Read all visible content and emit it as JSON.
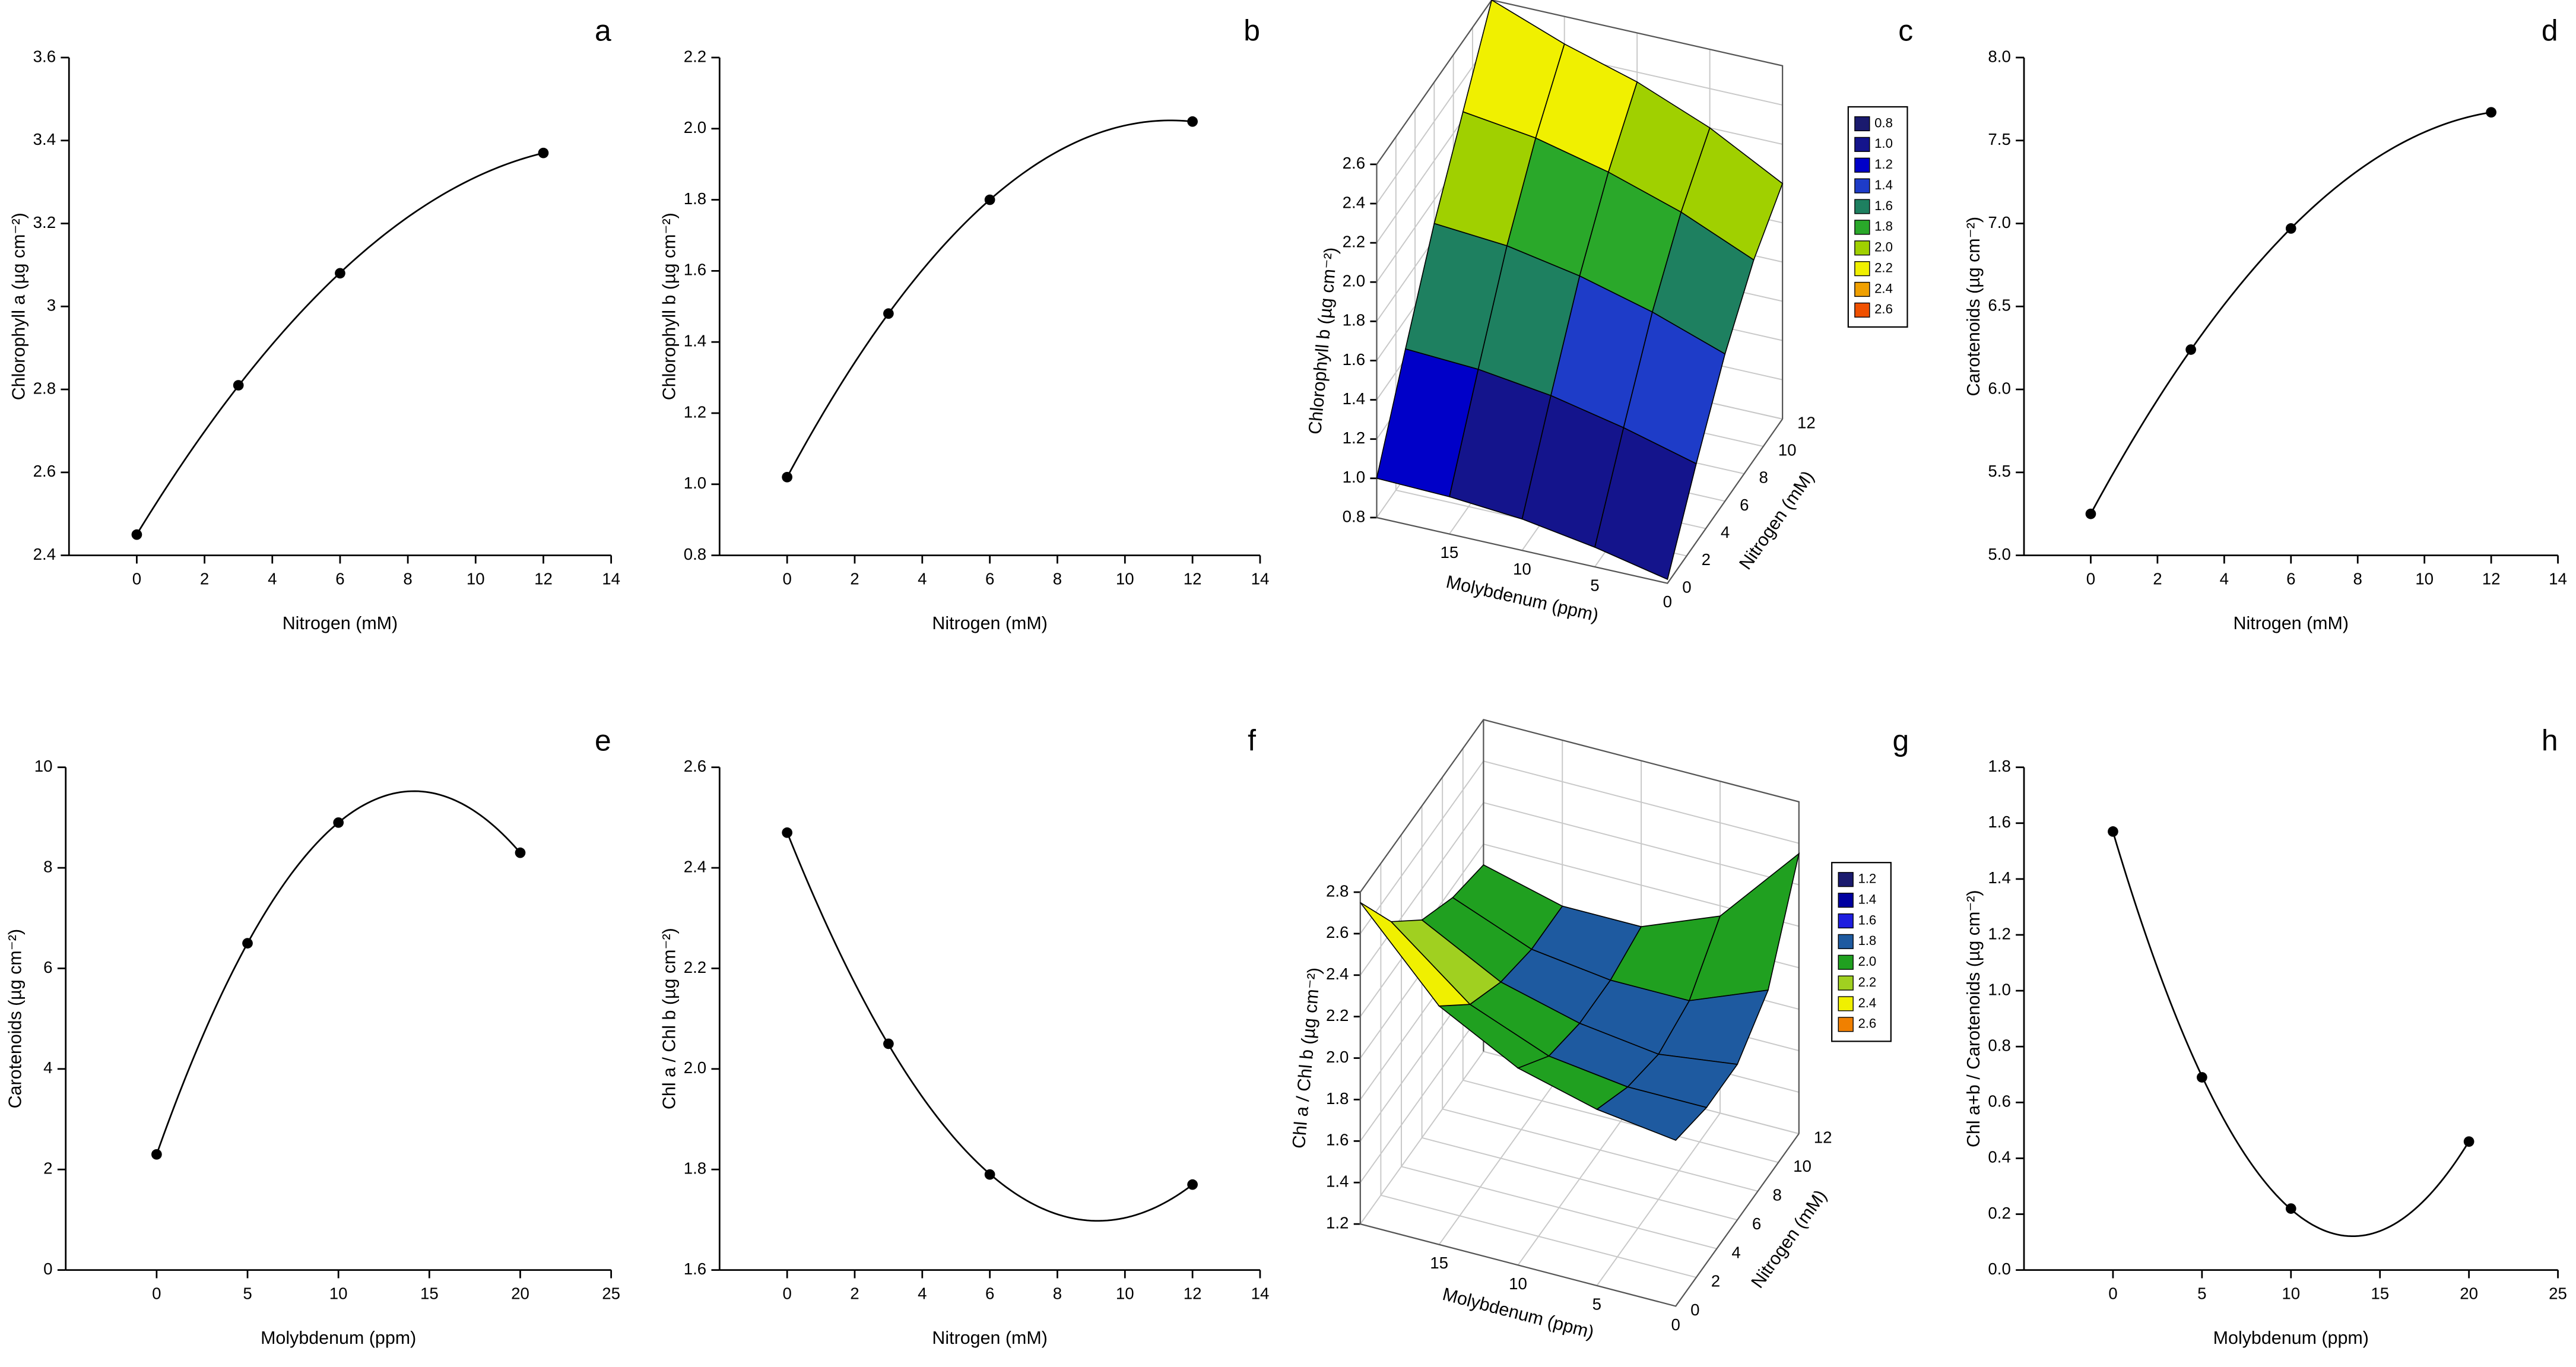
{
  "chart_data": [
    {
      "type": "line",
      "label": "a",
      "x_label": "Nitrogen (mM)",
      "y_label": "Chlorophyll a (µg cm⁻²)",
      "x": [
        0,
        3,
        6,
        12
      ],
      "values": [
        2.45,
        2.81,
        3.08,
        3.37
      ],
      "color": "#000000",
      "xlim": [
        -2,
        14
      ],
      "xticks": [
        0,
        2,
        4,
        6,
        8,
        10,
        12,
        14
      ],
      "ylim": [
        2.4,
        3.6
      ],
      "yticks": [
        2.4,
        2.6,
        2.8,
        3.0,
        3.2,
        3.4,
        3.6
      ]
    },
    {
      "type": "line",
      "label": "b",
      "x_label": "Nitrogen (mM)",
      "y_label": "Chlorophyll b (µg cm⁻²)",
      "x": [
        0,
        3,
        6,
        12
      ],
      "values": [
        1.02,
        1.48,
        1.8,
        2.02
      ],
      "color": "#000000",
      "xlim": [
        -2,
        14
      ],
      "xticks": [
        0,
        2,
        4,
        6,
        8,
        10,
        12,
        14
      ],
      "ylim": [
        0.8,
        2.2
      ],
      "yticks": [
        0.8,
        {
          "value": 1,
          "label": "1.0"
        },
        1.2,
        1.4,
        1.6,
        1.8,
        {
          "value": 2,
          "label": "2.0"
        },
        2.2
      ]
    },
    {
      "type": "surface",
      "label": "c",
      "x_label": "Molybdenum (ppm)",
      "y_label": "Nitrogen (mM)",
      "z_label": "Chlorophyll b (µg cm⁻²)",
      "x": [
        0,
        5,
        10,
        15,
        20
      ],
      "y": [
        0,
        3,
        6,
        9,
        12
      ],
      "z": [
        [
          0.82,
          0.9,
          0.96,
          0.99,
          1.0
        ],
        [
          1.2,
          1.3,
          1.38,
          1.43,
          1.45
        ],
        [
          1.55,
          1.68,
          1.78,
          1.85,
          1.88
        ],
        [
          1.82,
          1.98,
          2.1,
          2.19,
          2.24
        ],
        [
          2.0,
          2.2,
          2.35,
          2.46,
          2.6
        ]
      ],
      "xlim": [
        0,
        20
      ],
      "xticks": [
        0,
        5,
        10,
        15
      ],
      "ylim": [
        0,
        12
      ],
      "yticks": [
        0,
        2,
        4,
        6,
        8,
        10,
        12
      ],
      "zlim": [
        0.8,
        2.6
      ],
      "zticks": [
        0.8,
        {
          "value": 1,
          "label": "1.0"
        },
        1.2,
        1.4,
        1.6,
        1.8,
        {
          "value": 2,
          "label": "2.0"
        },
        2.2,
        2.4,
        2.6
      ],
      "levels": [
        0.8,
        {
          "value": 1,
          "label": "1.0"
        },
        1.2,
        1.4,
        1.6,
        1.8,
        {
          "value": 2,
          "label": "2.0"
        },
        2.2,
        2.4,
        2.6
      ],
      "level_colors": [
        "#1a1a6e",
        "#14148c",
        "#0000c8",
        "#1e3cc8",
        "#1e8060",
        "#2aa82a",
        "#a0d000",
        "#f0f000",
        "#f0a000",
        "#f05000"
      ]
    },
    {
      "type": "line",
      "label": "d",
      "x_label": "Nitrogen (mM)",
      "y_label": "Carotenoids (µg cm⁻²)",
      "x": [
        0,
        3,
        6,
        12
      ],
      "values": [
        5.25,
        6.24,
        6.97,
        7.67
      ],
      "color": "#000000",
      "xlim": [
        -2,
        14
      ],
      "xticks": [
        0,
        2,
        4,
        6,
        8,
        10,
        12,
        14
      ],
      "ylim": [
        5,
        8
      ],
      "yticks": [
        {
          "value": 5,
          "label": "5.0"
        },
        5.5,
        {
          "value": 6,
          "label": "6.0"
        },
        6.5,
        {
          "value": 7,
          "label": "7.0"
        },
        7.5,
        {
          "value": 8,
          "label": "8.0"
        }
      ]
    },
    {
      "type": "line",
      "label": "e",
      "x_label": "Molybdenum (ppm)",
      "y_label": "Carotenoids (µg cm⁻²)",
      "x": [
        0,
        5,
        10,
        20
      ],
      "values": [
        2.3,
        6.5,
        8.9,
        8.3
      ],
      "color": "#000000",
      "xlim": [
        -5,
        25
      ],
      "xticks": [
        0,
        5,
        10,
        15,
        20,
        25
      ],
      "ylim": [
        0,
        10
      ],
      "yticks": [
        0,
        2,
        4,
        6,
        8,
        10
      ]
    },
    {
      "type": "line",
      "label": "f",
      "x_label": "Nitrogen (mM)",
      "y_label": "Chl a / Chl b (µg cm⁻²)",
      "x": [
        0,
        3,
        6,
        12
      ],
      "values": [
        2.47,
        2.05,
        1.79,
        1.77
      ],
      "color": "#000000",
      "xlim": [
        -2,
        14
      ],
      "xticks": [
        0,
        2,
        4,
        6,
        8,
        10,
        12,
        14
      ],
      "ylim": [
        1.6,
        2.6
      ],
      "yticks": [
        1.6,
        1.8,
        {
          "value": 2,
          "label": "2.0"
        },
        2.2,
        2.4,
        2.6
      ]
    },
    {
      "type": "surface",
      "label": "g",
      "x_label": "Molybdenum (ppm)",
      "y_label": "Nitrogen (mM)",
      "z_label": "Chl a / Chl b (µg cm⁻²)",
      "x": [
        0,
        5,
        10,
        15,
        20
      ],
      "y": [
        0,
        3,
        6,
        9,
        12
      ],
      "z": [
        [
          2.0,
          2.05,
          2.15,
          2.35,
          2.75
        ],
        [
          1.95,
          1.95,
          2.0,
          2.15,
          2.45
        ],
        [
          1.95,
          1.9,
          1.95,
          2.05,
          2.25
        ],
        [
          2.1,
          1.95,
          1.95,
          2.0,
          2.15
        ],
        [
          2.55,
          2.15,
          2.0,
          2.0,
          2.1
        ]
      ],
      "xlim": [
        0,
        20
      ],
      "xticks": [
        0,
        5,
        10,
        15
      ],
      "ylim": [
        0,
        12
      ],
      "yticks": [
        0,
        2,
        4,
        6,
        8,
        10,
        12
      ],
      "zlim": [
        1.2,
        2.8
      ],
      "zticks": [
        1.2,
        1.4,
        1.6,
        1.8,
        {
          "value": 2,
          "label": "2.0"
        },
        2.2,
        2.4,
        2.6,
        2.8
      ],
      "levels": [
        1.2,
        1.4,
        1.6,
        1.8,
        {
          "value": 2,
          "label": "2.0"
        },
        2.2,
        2.4,
        2.6
      ],
      "level_colors": [
        "#1a1a6e",
        "#0000a0",
        "#1e1ee0",
        "#1e5aa0",
        "#20a020",
        "#a0d020",
        "#f0f000",
        "#f08000"
      ]
    },
    {
      "type": "line",
      "label": "h",
      "x_label": "Molybdenum (ppm)",
      "y_label": "Chl a+b / Carotenoids (µg cm⁻²)",
      "x": [
        0,
        5,
        10,
        20
      ],
      "values": [
        1.57,
        0.69,
        0.22,
        0.46
      ],
      "color": "#000000",
      "xlim": [
        -5,
        25
      ],
      "xticks": [
        0,
        5,
        10,
        15,
        20,
        25
      ],
      "ylim": [
        0,
        1.8
      ],
      "yticks": [
        {
          "value": 0,
          "label": "0.0"
        },
        0.2,
        0.4,
        0.6,
        0.8,
        {
          "value": 1,
          "label": "1.0"
        },
        1.2,
        1.4,
        1.6,
        1.8
      ]
    }
  ]
}
